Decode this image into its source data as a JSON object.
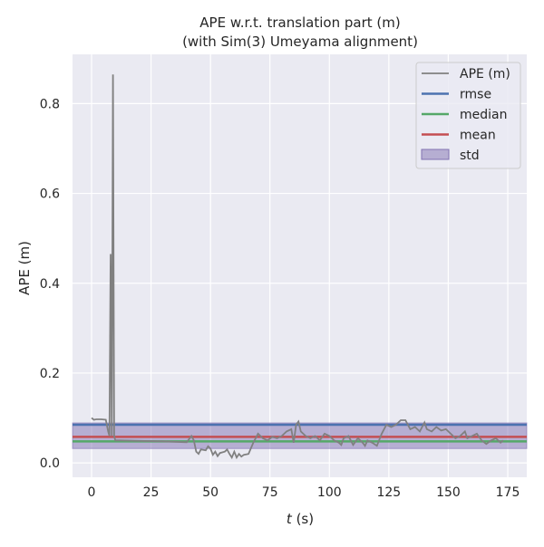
{
  "chart_data": {
    "type": "line",
    "title": "APE w.r.t. translation part (m)",
    "subtitle": "(with Sim(3) Umeyama alignment)",
    "xlabel_italic": "t",
    "xlabel_unit": " (s)",
    "ylabel": "APE (m)",
    "xlim": [
      -8,
      183
    ],
    "ylim": [
      -0.032,
      0.95
    ],
    "xticks": [
      0,
      25,
      50,
      75,
      100,
      125,
      150,
      175
    ],
    "yticks": [
      0.0,
      0.2,
      0.4,
      0.6,
      0.8
    ],
    "ytick_labels": [
      "0.0",
      "0.2",
      "0.4",
      "0.6",
      "0.8"
    ],
    "grid": true,
    "legend_position": "top-right",
    "legend": [
      "APE (m)",
      "rmse",
      "median",
      "mean",
      "std"
    ],
    "colors": {
      "ape": "#808080",
      "rmse": "#4c72b0",
      "median": "#55a868",
      "mean": "#c44e52",
      "std": "#8172b2",
      "bg": "#eaeaf2"
    },
    "stats": {
      "rmse": 0.085,
      "median": 0.048,
      "mean": 0.058,
      "std_low": 0.032,
      "std_high": 0.089
    },
    "series": {
      "name": "APE (m)",
      "x": [
        0,
        1,
        2,
        4,
        6,
        7,
        7.5,
        8,
        8.5,
        9,
        9.5,
        10,
        12,
        20,
        30,
        40,
        42,
        43,
        44,
        45,
        46,
        48,
        49,
        50,
        51,
        52,
        53,
        54,
        56,
        57,
        58,
        59,
        60,
        61,
        62,
        63,
        64,
        66,
        68,
        70,
        72,
        74,
        76,
        78,
        80,
        82,
        84,
        85,
        86,
        87,
        88,
        90,
        92,
        94,
        96,
        98,
        100,
        102,
        104,
        105,
        106,
        108,
        110,
        112,
        114,
        115,
        116,
        118,
        120,
        122,
        124,
        126,
        128,
        130,
        132,
        134,
        136,
        138,
        140,
        141,
        143,
        145,
        147,
        149,
        151,
        153,
        155,
        157,
        158,
        160,
        162,
        164,
        166,
        168,
        170,
        172,
        173
      ],
      "y": [
        0.1,
        0.096,
        0.097,
        0.097,
        0.096,
        0.07,
        0.06,
        0.465,
        0.06,
        0.865,
        0.06,
        0.05,
        0.05,
        0.049,
        0.048,
        0.046,
        0.06,
        0.05,
        0.025,
        0.02,
        0.03,
        0.028,
        0.037,
        0.032,
        0.018,
        0.025,
        0.015,
        0.022,
        0.025,
        0.03,
        0.02,
        0.012,
        0.025,
        0.012,
        0.02,
        0.014,
        0.018,
        0.02,
        0.045,
        0.065,
        0.055,
        0.05,
        0.058,
        0.055,
        0.06,
        0.07,
        0.075,
        0.045,
        0.085,
        0.092,
        0.07,
        0.06,
        0.055,
        0.06,
        0.05,
        0.065,
        0.06,
        0.05,
        0.045,
        0.04,
        0.055,
        0.06,
        0.04,
        0.055,
        0.045,
        0.038,
        0.05,
        0.045,
        0.038,
        0.065,
        0.085,
        0.08,
        0.085,
        0.095,
        0.095,
        0.075,
        0.08,
        0.07,
        0.09,
        0.075,
        0.07,
        0.08,
        0.072,
        0.075,
        0.065,
        0.055,
        0.06,
        0.07,
        0.055,
        0.06,
        0.065,
        0.05,
        0.042,
        0.05,
        0.055,
        0.045,
        0.05
      ]
    }
  }
}
